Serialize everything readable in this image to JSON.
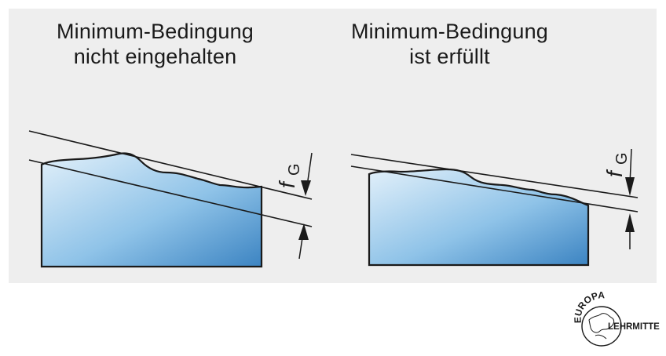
{
  "panels": [
    {
      "title_line1": "Minimum-Bedingung",
      "title_line2": "nicht eingehalten"
    },
    {
      "title_line1": "Minimum-Bedingung",
      "title_line2": "ist erfüllt"
    }
  ],
  "dimension_label": "f",
  "dimension_subscript": "G",
  "logo": {
    "text_top": "EUROPA",
    "text_side": "LEHRMITTEL"
  },
  "colors": {
    "background_panel": "#eeeeee",
    "body_fill_light": "#dcecf8",
    "body_fill_dark": "#3f88c5",
    "line": "#1a1a1a"
  }
}
